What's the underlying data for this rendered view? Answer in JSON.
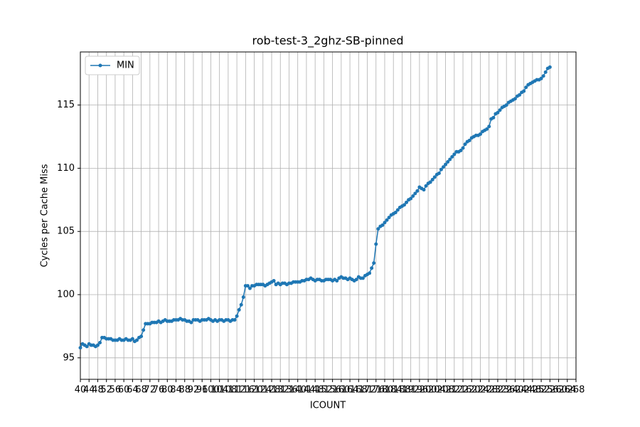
{
  "chart_data": {
    "type": "line",
    "title": "rob-test-3_2ghz-SB-pinned",
    "xlabel": "ICOUNT",
    "ylabel": "Cycles per Cache Miss",
    "x": [
      40,
      41,
      42,
      43,
      44,
      45,
      46,
      47,
      48,
      49,
      50,
      51,
      52,
      53,
      54,
      55,
      56,
      57,
      58,
      59,
      60,
      61,
      62,
      63,
      64,
      65,
      66,
      67,
      68,
      69,
      70,
      71,
      72,
      73,
      74,
      75,
      76,
      77,
      78,
      79,
      80,
      81,
      82,
      83,
      84,
      85,
      86,
      87,
      88,
      89,
      90,
      91,
      92,
      93,
      94,
      95,
      96,
      97,
      98,
      99,
      100,
      101,
      102,
      103,
      104,
      105,
      106,
      107,
      108,
      109,
      110,
      111,
      112,
      113,
      114,
      115,
      116,
      117,
      118,
      119,
      120,
      121,
      122,
      123,
      124,
      125,
      126,
      127,
      128,
      129,
      130,
      131,
      132,
      133,
      134,
      135,
      136,
      137,
      138,
      139,
      140,
      141,
      142,
      143,
      144,
      145,
      146,
      147,
      148,
      149,
      150,
      151,
      152,
      153,
      154,
      155,
      156,
      157,
      158,
      159,
      160,
      161,
      162,
      163,
      164,
      165,
      166,
      167,
      168,
      169,
      170,
      171,
      172,
      173,
      174,
      175,
      176,
      177,
      178,
      179,
      180,
      181,
      182,
      183,
      184,
      185,
      186,
      187,
      188,
      189,
      190,
      191,
      192,
      193,
      194,
      195,
      196,
      197,
      198,
      199,
      200,
      201,
      202,
      203,
      204,
      205,
      206,
      207,
      208,
      209,
      210,
      211,
      212,
      213,
      214,
      215,
      216,
      217,
      218,
      219,
      220,
      221,
      222,
      223,
      224,
      225,
      226,
      227,
      228,
      229,
      230,
      231,
      232,
      233,
      234,
      235,
      236,
      237,
      238,
      239,
      240,
      241,
      242,
      243,
      244,
      245,
      246,
      247,
      248,
      249,
      250,
      251,
      252,
      253,
      254,
      255,
      256
    ],
    "series": [
      {
        "name": "MIN",
        "color": "#1f77b4",
        "values": [
          95.8,
          96.1,
          96.0,
          95.9,
          96.1,
          96.0,
          96.0,
          95.9,
          96.0,
          96.2,
          96.6,
          96.6,
          96.5,
          96.5,
          96.5,
          96.4,
          96.4,
          96.4,
          96.5,
          96.4,
          96.4,
          96.5,
          96.4,
          96.4,
          96.5,
          96.3,
          96.4,
          96.6,
          96.7,
          97.2,
          97.7,
          97.7,
          97.7,
          97.8,
          97.8,
          97.8,
          97.9,
          97.8,
          97.9,
          98.0,
          97.9,
          97.9,
          97.9,
          98.0,
          98.0,
          98.0,
          98.1,
          98.0,
          98.0,
          97.9,
          97.9,
          97.8,
          98.0,
          98.0,
          98.0,
          97.9,
          98.0,
          98.0,
          98.0,
          98.1,
          98.0,
          97.9,
          98.0,
          97.9,
          98.0,
          98.0,
          97.9,
          98.0,
          98.0,
          97.9,
          98.0,
          98.0,
          98.3,
          98.8,
          99.2,
          99.8,
          100.7,
          100.7,
          100.5,
          100.7,
          100.7,
          100.8,
          100.8,
          100.8,
          100.8,
          100.7,
          100.8,
          100.9,
          101.0,
          101.1,
          100.8,
          100.9,
          100.8,
          100.9,
          100.9,
          100.8,
          100.9,
          100.9,
          101.0,
          101.0,
          101.0,
          101.0,
          101.1,
          101.1,
          101.2,
          101.2,
          101.3,
          101.2,
          101.1,
          101.2,
          101.2,
          101.1,
          101.1,
          101.2,
          101.2,
          101.2,
          101.1,
          101.2,
          101.1,
          101.3,
          101.4,
          101.3,
          101.3,
          101.2,
          101.3,
          101.2,
          101.1,
          101.2,
          101.4,
          101.3,
          101.3,
          101.5,
          101.6,
          101.7,
          102.1,
          102.5,
          104.0,
          105.2,
          105.4,
          105.5,
          105.7,
          105.9,
          106.1,
          106.3,
          106.4,
          106.5,
          106.7,
          106.9,
          107.0,
          107.1,
          107.3,
          107.5,
          107.6,
          107.8,
          108.0,
          108.2,
          108.5,
          108.4,
          108.3,
          108.6,
          108.8,
          108.9,
          109.1,
          109.3,
          109.5,
          109.6,
          109.9,
          110.1,
          110.3,
          110.5,
          110.7,
          110.9,
          111.1,
          111.3,
          111.3,
          111.4,
          111.6,
          111.9,
          112.1,
          112.2,
          112.4,
          112.5,
          112.6,
          112.6,
          112.7,
          112.9,
          113.0,
          113.1,
          113.3,
          113.9,
          114.0,
          114.3,
          114.4,
          114.6,
          114.8,
          114.9,
          115.0,
          115.2,
          115.3,
          115.4,
          115.5,
          115.7,
          115.8,
          116.0,
          116.1,
          116.4,
          116.6,
          116.7,
          116.8,
          116.9,
          117.0,
          117.0,
          117.1,
          117.3,
          117.6,
          117.9,
          118.0
        ]
      }
    ],
    "xlim": [
      40,
      268
    ],
    "xticks": [
      40,
      44,
      48,
      52,
      56,
      60,
      64,
      68,
      72,
      76,
      80,
      84,
      88,
      92,
      96,
      100,
      104,
      108,
      112,
      116,
      120,
      124,
      128,
      132,
      136,
      140,
      144,
      148,
      152,
      156,
      160,
      164,
      168,
      172,
      176,
      180,
      184,
      188,
      192,
      196,
      200,
      204,
      208,
      212,
      216,
      220,
      224,
      228,
      232,
      236,
      240,
      244,
      248,
      252,
      256,
      260,
      264,
      268
    ],
    "ylim": [
      93.3,
      119.2
    ],
    "yticks": [
      95,
      100,
      105,
      110,
      115
    ],
    "grid": true,
    "legend": "upper-left"
  }
}
